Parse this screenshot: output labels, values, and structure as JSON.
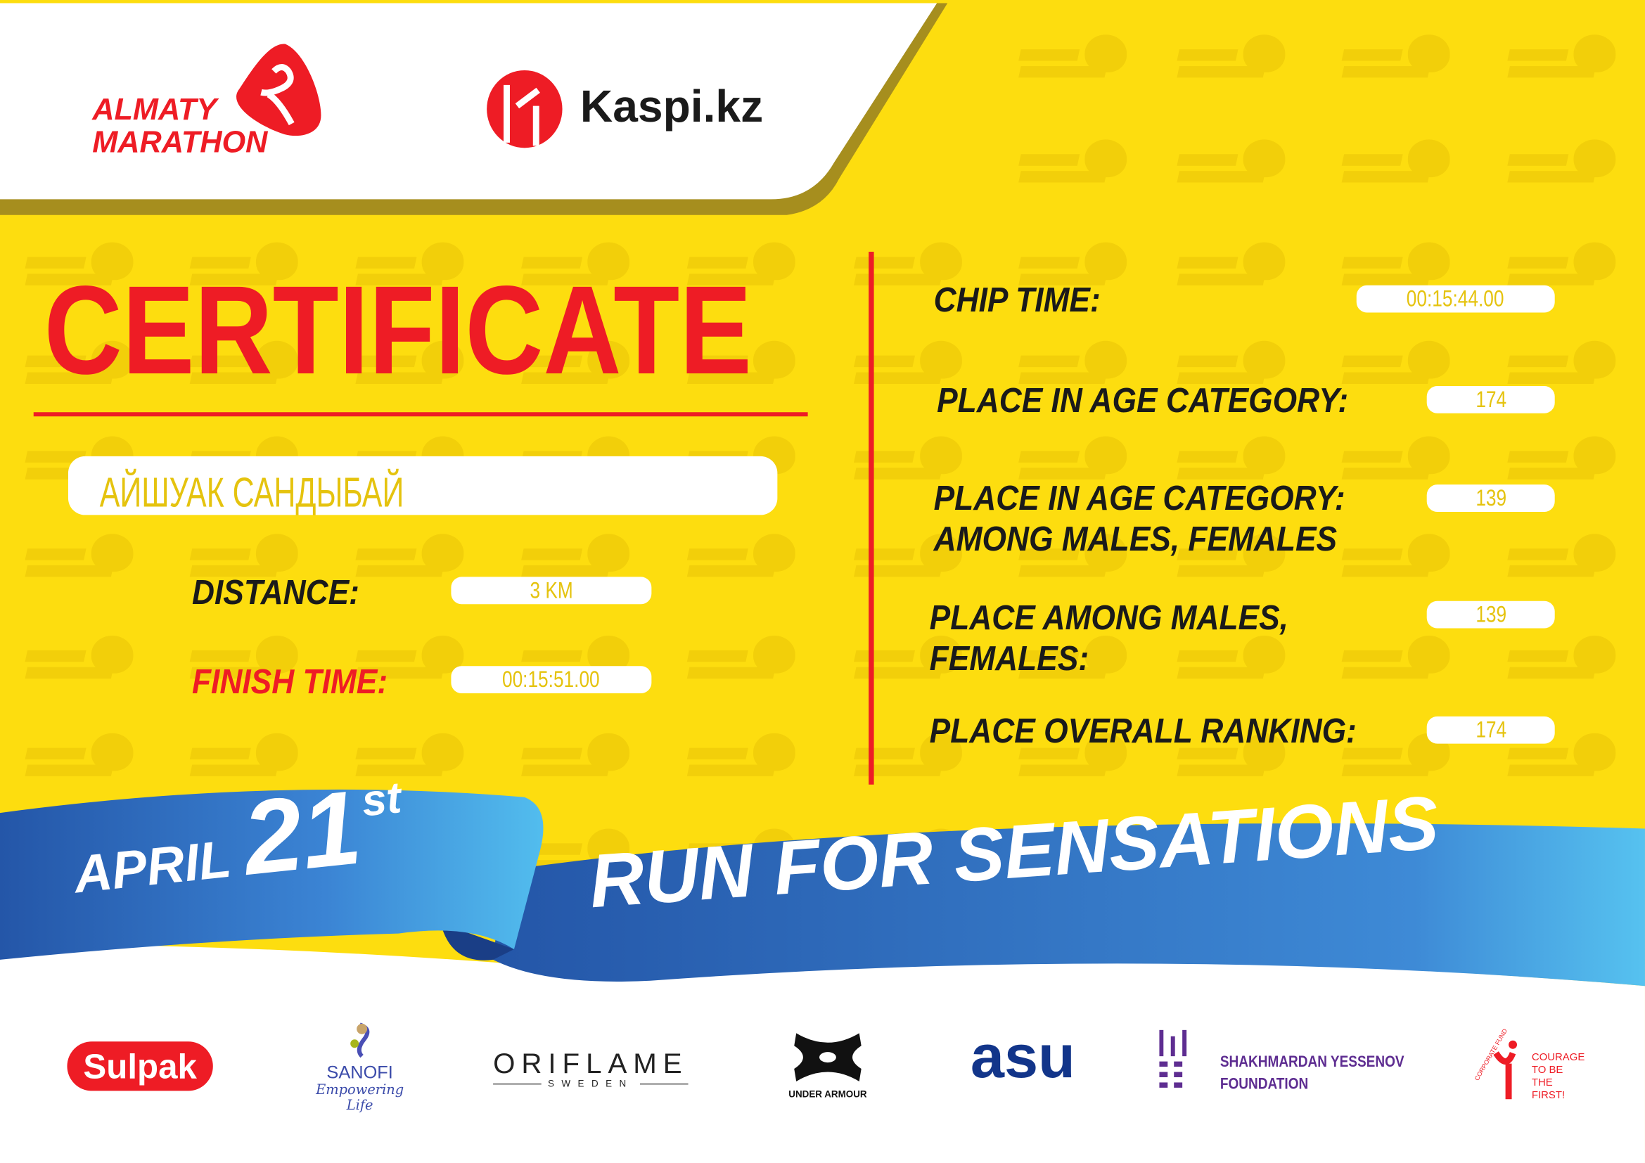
{
  "colors": {
    "yellow": "#FDDD0F",
    "red": "#EE1C25",
    "blue": "#2F6FC4",
    "light_blue": "#4FB8EC",
    "olive": "#A68E1E"
  },
  "watermark": {
    "line1": "ALMATY",
    "line2": "MARATHON"
  },
  "header": {
    "logo_line1": "ALMATY",
    "logo_line2": "MARATHON",
    "sponsor": "Kaspi.kz"
  },
  "certificate": {
    "title": "CERTIFICATE",
    "name": "АЙШУАК САНДЫБАЙ",
    "distance_label": "DISTANCE:",
    "distance_value": "3 KM",
    "finish_label": "FINISH TIME:",
    "finish_value": "00:15:51.00",
    "chip_label": "CHIP TIME:",
    "chip_value": "00:15:44.00",
    "age_label": "PLACE IN AGE CATEGORY:",
    "age_value": "174",
    "age_gender_label1": "PLACE IN AGE CATEGORY:",
    "age_gender_label2": "AMONG MALES, FEMALES",
    "age_gender_value": "139",
    "gender_label1": "PLACE AMONG MALES,",
    "gender_label2": "FEMALES:",
    "gender_value": "139",
    "overall_label": "PLACE OVERALL RANKING:",
    "overall_value": "174"
  },
  "ribbon": {
    "month": "APRIL",
    "day": "21",
    "suffix": "st",
    "slogan": "RUN FOR SENSATIONS"
  },
  "sponsors": {
    "sulpak": "Sulpak",
    "sanofi": "SANOFI",
    "sanofi_tag": "Empowering Life",
    "oriflame": "ORIFLAME",
    "oriflame_sub": "SWEDEN",
    "ua": "UNDER ARMOUR",
    "asu": "asu",
    "yessenov1": "SHAKHMARDAN YESSENOV",
    "yessenov2": "FOUNDATION",
    "courage1": "COURAGE",
    "courage2": "TO BE",
    "courage3": "THE FIRST!",
    "courage_arc": "CORPORATE FUND"
  }
}
